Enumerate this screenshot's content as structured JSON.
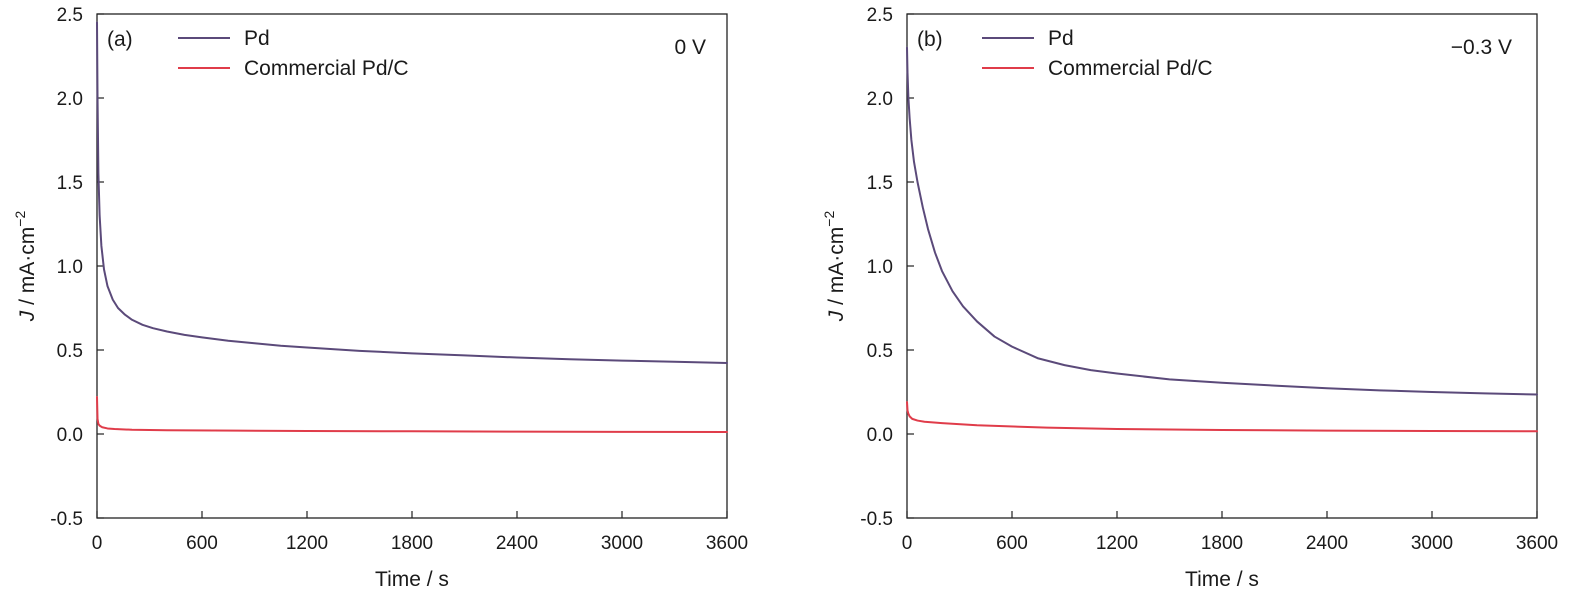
{
  "chart_data": [
    {
      "type": "line",
      "panel_label": "(a)",
      "annotation": "0 V",
      "xlabel": "Time / s",
      "ylabel": "J / mA·cm",
      "ylabel_sup": "−2",
      "xlim": [
        0,
        3600
      ],
      "ylim": [
        -0.5,
        2.5
      ],
      "xticks": [
        0,
        600,
        1200,
        1800,
        2400,
        3000,
        3600
      ],
      "yticks": [
        -0.5,
        0.0,
        0.5,
        1.0,
        1.5,
        2.0,
        2.5
      ],
      "ytick_labels": [
        "-0.5",
        "0.0",
        "0.5",
        "1.0",
        "1.5",
        "2.0",
        "2.5"
      ],
      "grid": false,
      "legend_position": "top-left",
      "series": [
        {
          "name": "Pd",
          "color": "#5b4a7a",
          "x": [
            0,
            3,
            8,
            15,
            25,
            40,
            60,
            90,
            120,
            160,
            200,
            260,
            320,
            400,
            500,
            600,
            750,
            900,
            1050,
            1200,
            1500,
            1800,
            2100,
            2400,
            2700,
            3000,
            3300,
            3600
          ],
          "y": [
            2.45,
            2.0,
            1.55,
            1.3,
            1.12,
            0.98,
            0.88,
            0.8,
            0.75,
            0.71,
            0.68,
            0.65,
            0.63,
            0.61,
            0.59,
            0.575,
            0.555,
            0.54,
            0.525,
            0.515,
            0.495,
            0.48,
            0.468,
            0.455,
            0.445,
            0.437,
            0.43,
            0.423
          ]
        },
        {
          "name": "Commercial Pd/C",
          "color": "#e03c4a",
          "x": [
            0,
            3,
            8,
            15,
            30,
            60,
            100,
            200,
            400,
            800,
            1200,
            1800,
            2400,
            3000,
            3600
          ],
          "y": [
            0.22,
            0.09,
            0.06,
            0.05,
            0.04,
            0.033,
            0.03,
            0.025,
            0.022,
            0.02,
            0.018,
            0.016,
            0.014,
            0.013,
            0.012
          ]
        }
      ]
    },
    {
      "type": "line",
      "panel_label": "(b)",
      "annotation": "−0.3 V",
      "xlabel": "Time / s",
      "ylabel": "J / mA·cm",
      "ylabel_sup": "−2",
      "xlim": [
        0,
        3600
      ],
      "ylim": [
        -0.5,
        2.5
      ],
      "xticks": [
        0,
        600,
        1200,
        1800,
        2400,
        3000,
        3600
      ],
      "yticks": [
        -0.5,
        0.0,
        0.5,
        1.0,
        1.5,
        2.0,
        2.5
      ],
      "ytick_labels": [
        "-0.5",
        "0.0",
        "0.5",
        "1.0",
        "1.5",
        "2.0",
        "2.5"
      ],
      "grid": false,
      "legend_position": "top-left",
      "series": [
        {
          "name": "Pd",
          "color": "#5b4a7a",
          "x": [
            0,
            3,
            8,
            15,
            25,
            40,
            60,
            90,
            120,
            160,
            200,
            260,
            320,
            400,
            500,
            600,
            750,
            900,
            1050,
            1200,
            1500,
            1800,
            2100,
            2400,
            2700,
            3000,
            3300,
            3600
          ],
          "y": [
            2.3,
            2.15,
            2.0,
            1.88,
            1.75,
            1.62,
            1.5,
            1.35,
            1.22,
            1.08,
            0.97,
            0.85,
            0.76,
            0.67,
            0.58,
            0.52,
            0.45,
            0.41,
            0.38,
            0.36,
            0.325,
            0.305,
            0.288,
            0.272,
            0.26,
            0.25,
            0.242,
            0.235
          ]
        },
        {
          "name": "Commercial Pd/C",
          "color": "#e03c4a",
          "x": [
            0,
            3,
            8,
            15,
            30,
            60,
            100,
            200,
            400,
            800,
            1200,
            1800,
            2400,
            3000,
            3600
          ],
          "y": [
            0.19,
            0.14,
            0.12,
            0.105,
            0.09,
            0.08,
            0.073,
            0.065,
            0.052,
            0.038,
            0.03,
            0.024,
            0.02,
            0.018,
            0.016
          ]
        }
      ]
    }
  ]
}
